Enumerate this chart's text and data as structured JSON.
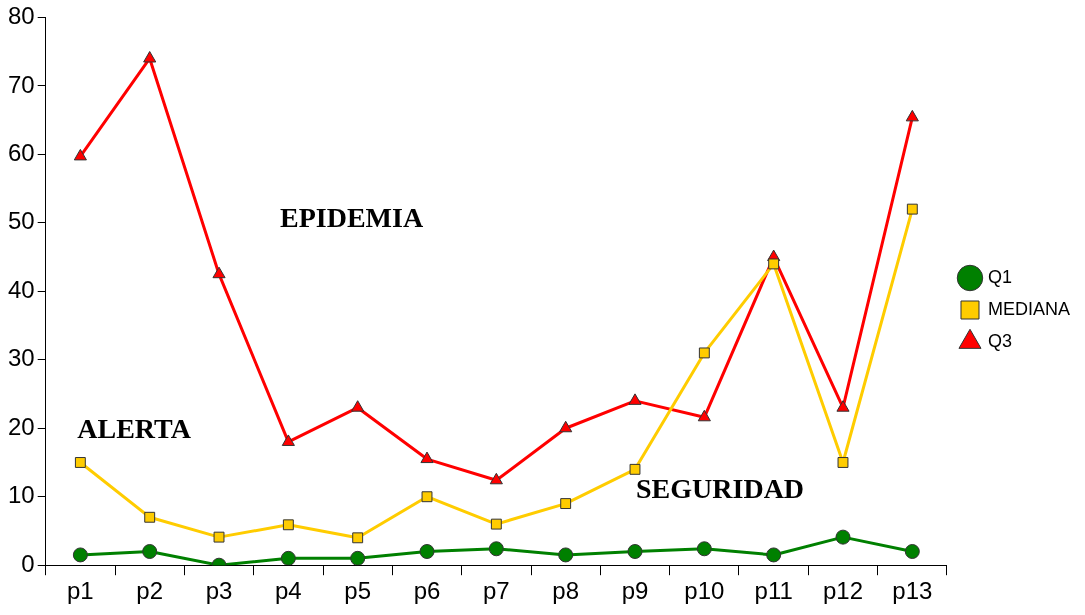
{
  "chart_data": {
    "type": "line",
    "categories": [
      "p1",
      "p2",
      "p3",
      "p4",
      "p5",
      "p6",
      "p7",
      "p8",
      "p9",
      "p10",
      "p11",
      "p12",
      "p13"
    ],
    "series": [
      {
        "name": "Q1",
        "color": "#008000",
        "marker": "circle",
        "values": [
          1.5,
          2,
          0,
          1,
          1,
          2,
          2.4,
          1.5,
          2,
          2.4,
          1.5,
          4.1,
          2
        ]
      },
      {
        "name": "MEDIANA",
        "color": "#ffcc00",
        "marker": "square",
        "values": [
          15,
          7,
          4.1,
          5.9,
          4,
          10,
          6,
          9,
          14,
          31,
          44,
          15,
          52
        ]
      },
      {
        "name": "Q3",
        "color": "#ff0000",
        "marker": "triangle",
        "values": [
          59.7,
          74,
          42.5,
          18,
          23,
          15.5,
          12.4,
          20,
          24,
          21.6,
          45,
          23,
          65.4
        ]
      }
    ],
    "ylim": [
      0,
      80
    ],
    "yticks": [
      0,
      10,
      20,
      30,
      40,
      50,
      60,
      70,
      80
    ],
    "grid": false,
    "legend": "right",
    "line_style": "solid",
    "annotations": [
      "EPIDEMIA",
      "ALERTA",
      "SEGURIDAD"
    ]
  }
}
